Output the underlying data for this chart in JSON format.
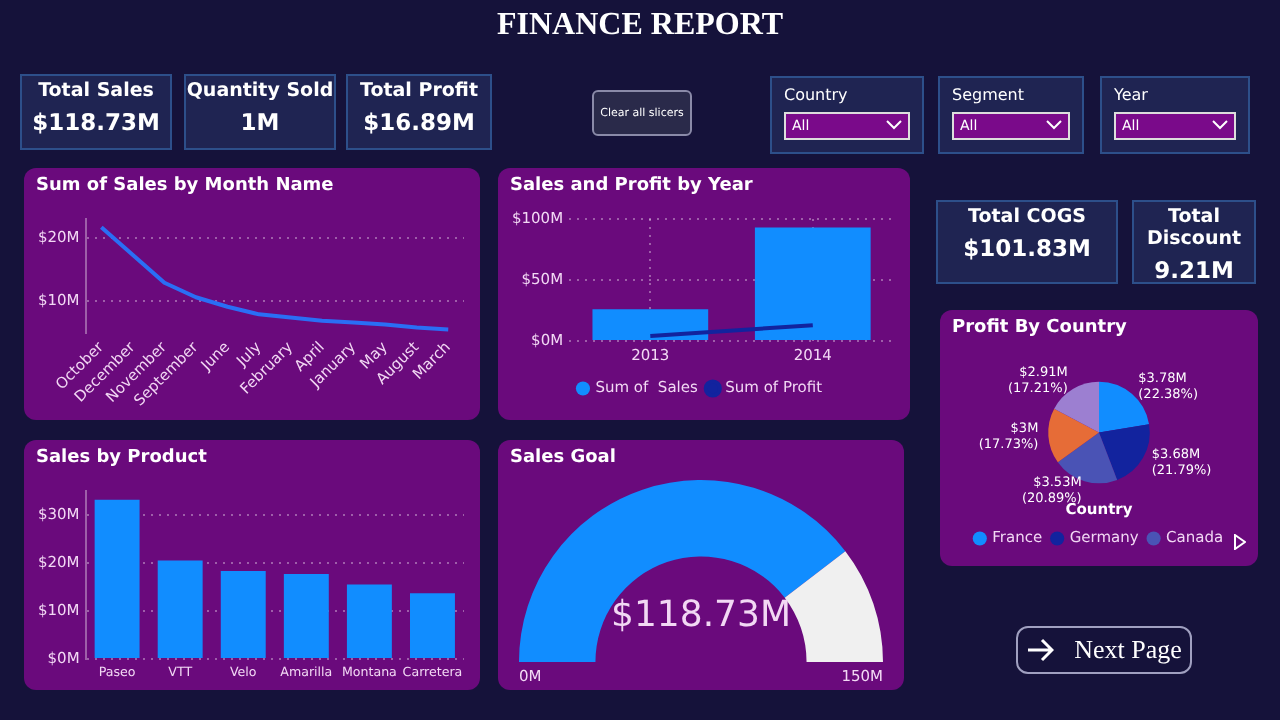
{
  "chart_data": [
    {
      "type": "other",
      "title": "FINANCE REPORT"
    },
    {
      "type": "other",
      "title": "Total Sales",
      "annotations": [
        "$118.73M"
      ]
    },
    {
      "type": "other",
      "title": "Quantity Sold",
      "annotations": [
        "1M"
      ]
    },
    {
      "type": "other",
      "title": "Total Profit",
      "annotations": [
        "$16.89M"
      ]
    },
    {
      "type": "other",
      "annotations": [
        "Clear all slicers"
      ]
    },
    {
      "type": "other",
      "title": "Country",
      "annotations": [
        "All"
      ]
    },
    {
      "type": "other",
      "title": "Segment",
      "annotations": [
        "All"
      ]
    },
    {
      "type": "other",
      "title": "Year",
      "annotations": [
        "All"
      ]
    },
    {
      "type": "line",
      "title": "Sum of Sales by Month Name",
      "categories": [
        "October",
        "December",
        "November",
        "September",
        "June",
        "July",
        "February",
        "April",
        "January",
        "May",
        "August",
        "March"
      ],
      "series": [
        {
          "color": "#2a6ef5",
          "values": [
            21.7,
            17.3,
            12.9,
            10.6,
            9.1,
            7.9,
            7.4,
            6.9,
            6.6,
            6.3,
            5.8,
            5.5
          ]
        }
      ],
      "ylim": [
        5,
        23
      ],
      "yticks": [
        {
          "value": 10,
          "label": "$10M"
        },
        {
          "value": 20,
          "label": "$20M"
        }
      ],
      "grid": "y",
      "marker": "none"
    },
    {
      "type": "bar",
      "title": "Sales and Profit by Year",
      "categories": [
        "2013",
        "2014"
      ],
      "series": [
        {
          "name": "Sum of  Sales",
          "color": "#118dff",
          "values": [
            26,
            93
          ]
        },
        {
          "name": "Sum of Profit",
          "type": "line",
          "color": "#12239e",
          "values": [
            4,
            13
          ]
        }
      ],
      "ylim": [
        0,
        100
      ],
      "yticks": [
        {
          "value": 0,
          "label": "$0M"
        },
        {
          "value": 50,
          "label": "$50M"
        },
        {
          "value": 100,
          "label": "$100M"
        }
      ],
      "grid": true,
      "legend": "bottom",
      "marker": "none"
    },
    {
      "type": "other",
      "title": "Total COGS",
      "annotations": [
        "$101.83M"
      ]
    },
    {
      "type": "other",
      "title": "Total Discount",
      "annotations": [
        "9.21M"
      ]
    },
    {
      "type": "pie",
      "title": "Profit By Country",
      "categories": [
        "France",
        "Germany",
        "Canada",
        null,
        null
      ],
      "values": [
        22.38,
        21.79,
        20.89,
        17.73,
        17.21
      ],
      "colors": [
        "#118dff",
        "#12239e",
        "#4a53b5",
        "#e66c37",
        "#9c7fd1"
      ],
      "value_labels": [
        "$3.78M (22.38%)",
        "$3.68M (21.79%)",
        "$3.53M (20.89%)",
        "$3M (17.73%)",
        "$2.91M (17.21%)"
      ],
      "legend": "bottom",
      "legend_title": "Country"
    },
    {
      "type": "bar",
      "title": "Sales by Product",
      "categories": [
        "Paseo",
        "VTT",
        "Velo",
        "Amarilla",
        "Montana",
        "Carretera"
      ],
      "series": [
        {
          "color": "#118dff",
          "values": [
            33.2,
            20.5,
            18.3,
            17.7,
            15.5,
            13.7
          ]
        }
      ],
      "ylim": [
        0,
        35
      ],
      "yticks": [
        {
          "value": 0,
          "label": "$0M"
        },
        {
          "value": 10,
          "label": "$10M"
        },
        {
          "value": 20,
          "label": "$20M"
        },
        {
          "value": 30,
          "label": "$30M"
        }
      ],
      "grid": "y"
    },
    {
      "type": "donut",
      "title": "Sales Goal",
      "categories": [
        null,
        null
      ],
      "values": [
        118.73,
        31.27
      ],
      "value_labels": [
        "$118.73M",
        null
      ],
      "colors": [
        "#118dff",
        "#f0f0f0"
      ],
      "annotations": [
        "0M",
        "150M"
      ]
    },
    {
      "type": "other",
      "annotations": [
        "Next Page"
      ]
    }
  ]
}
